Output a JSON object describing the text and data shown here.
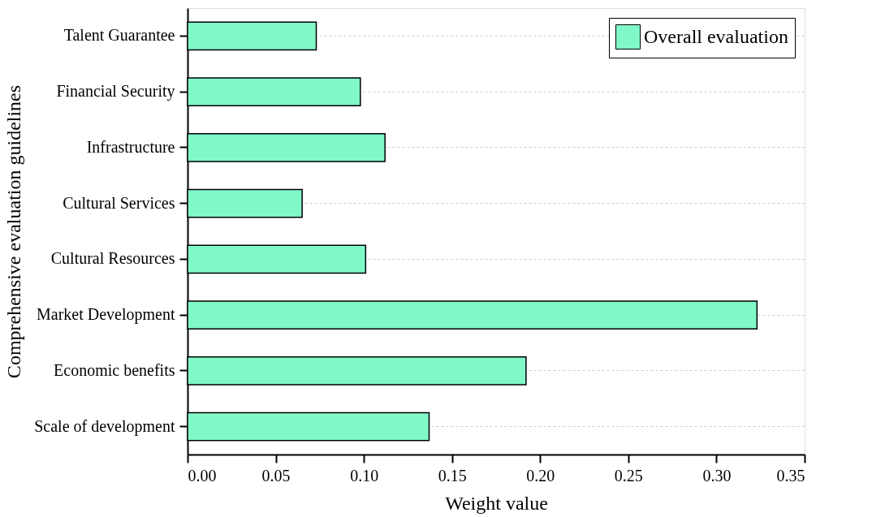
{
  "chart_data": {
    "type": "bar",
    "orientation": "horizontal",
    "xlabel": "Weight value",
    "ylabel": "Comprehensive evaluation guidelines",
    "categories": [
      "Talent Guarantee",
      "Financial Security",
      "Infrastructure",
      "Cultural Services",
      "Cultural Resources",
      "Market Development",
      "Economic benefits",
      "Scale of development"
    ],
    "series": [
      {
        "name": "Overall evaluation",
        "color": "#80f8c8",
        "values": [
          0.073,
          0.098,
          0.112,
          0.065,
          0.101,
          0.323,
          0.192,
          0.137
        ]
      }
    ],
    "xlim": [
      0,
      0.35
    ],
    "xticks": [
      {
        "value": 0,
        "label": "0.00"
      },
      {
        "value": 0.05,
        "label": "0.05"
      },
      {
        "value": 0.1,
        "label": "0.10"
      },
      {
        "value": 0.15,
        "label": "0.15"
      },
      {
        "value": 0.2,
        "label": "0.20"
      },
      {
        "value": 0.25,
        "label": "0.25"
      },
      {
        "value": 0.3,
        "label": "0.30"
      },
      {
        "value": 0.35,
        "label": "0.35"
      }
    ],
    "grid": "y",
    "legend": "top right"
  }
}
